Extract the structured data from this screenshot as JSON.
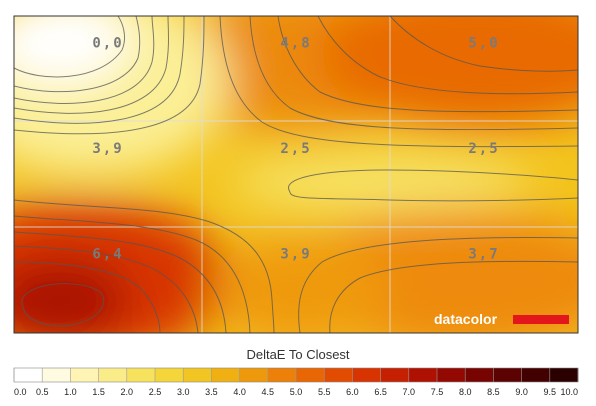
{
  "chart_data": {
    "type": "heatmap",
    "xlabel": "",
    "ylabel": "",
    "grid": true,
    "rows": 3,
    "cols": 3,
    "cells": [
      {
        "row": 0,
        "col": 0,
        "label": "0,0",
        "value": 0.0
      },
      {
        "row": 0,
        "col": 1,
        "label": "4,8",
        "value": 4.8
      },
      {
        "row": 0,
        "col": 2,
        "label": "5,0",
        "value": 5.0
      },
      {
        "row": 1,
        "col": 0,
        "label": "3,9",
        "value": 3.9
      },
      {
        "row": 1,
        "col": 1,
        "label": "2,5",
        "value": 2.5
      },
      {
        "row": 1,
        "col": 2,
        "label": "2,5",
        "value": 2.5
      },
      {
        "row": 2,
        "col": 0,
        "label": "6,4",
        "value": 6.4
      },
      {
        "row": 2,
        "col": 1,
        "label": "3,9",
        "value": 3.9
      },
      {
        "row": 2,
        "col": 2,
        "label": "3,7",
        "value": 3.7
      }
    ],
    "colorbar": {
      "title": "DeltaE To Closest",
      "ticks": [
        "0.0",
        "0.5",
        "1.0",
        "1.5",
        "2.0",
        "2.5",
        "3.0",
        "3.5",
        "4.0",
        "4.5",
        "5.0",
        "5.5",
        "6.0",
        "6.5",
        "7.0",
        "7.5",
        "8.0",
        "8.5",
        "9.0",
        "9.5",
        "10.0"
      ],
      "colors": [
        "#ffffff",
        "#fffbe0",
        "#fff4b4",
        "#fbec8a",
        "#f7e25e",
        "#f5d63a",
        "#f2c622",
        "#f0b012",
        "#ee990c",
        "#ec8008",
        "#e86604",
        "#e24c02",
        "#d83402",
        "#c62002",
        "#ae1002",
        "#940802",
        "#780402",
        "#5c0202",
        "#420000",
        "#2a0000"
      ]
    }
  },
  "brand": {
    "text": "datacolor",
    "bar_color": "#e3161b"
  },
  "colors": {
    "plot_border": "#333333",
    "contour": "#555555",
    "grid": "#dddddd"
  }
}
